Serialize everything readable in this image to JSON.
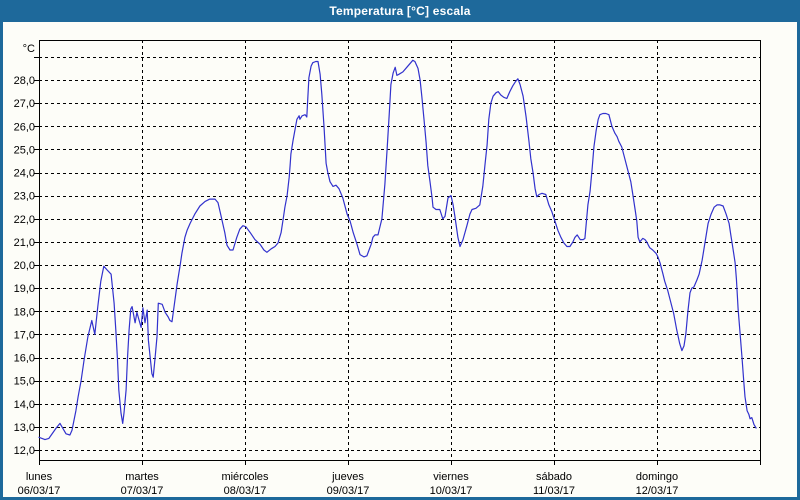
{
  "window": {
    "title": "Temperatura [°C] escala"
  },
  "theme": {
    "titlebar_bg": "#1e699b",
    "window_border": "#1e699b",
    "chart_bg": "#fdfdf8",
    "line_color": "#3232cd",
    "grid_color": "#000000",
    "text_color": "#000000"
  },
  "chart_data": {
    "type": "line",
    "title": "Temperatura [°C] escala",
    "y_unit_label": "°C",
    "grid": "dashed",
    "legend": "none",
    "y_axis": {
      "grid_min": 12,
      "grid_max": 29,
      "step": 1,
      "plot_min": 11.55,
      "plot_max": 29.75
    },
    "y_ticks": [
      {
        "value": 28,
        "label": "28,0"
      },
      {
        "value": 27,
        "label": "27,0"
      },
      {
        "value": 26,
        "label": "26,0"
      },
      {
        "value": 25,
        "label": "25,0"
      },
      {
        "value": 24,
        "label": "24,0"
      },
      {
        "value": 23,
        "label": "23,0"
      },
      {
        "value": 22,
        "label": "22,0"
      },
      {
        "value": 21,
        "label": "21,0"
      },
      {
        "value": 20,
        "label": "20,0"
      },
      {
        "value": 19,
        "label": "19,0"
      },
      {
        "value": 18,
        "label": "18,0"
      },
      {
        "value": 17,
        "label": "17,0"
      },
      {
        "value": 16,
        "label": "16,0"
      },
      {
        "value": 15,
        "label": "15,0"
      },
      {
        "value": 14,
        "label": "14,0"
      },
      {
        "value": 13,
        "label": "13,0"
      },
      {
        "value": 12,
        "label": "12,0"
      }
    ],
    "x_axis": {
      "unit": "hours",
      "hours_span": 168,
      "day_count": 7
    },
    "x_ticks": [
      {
        "name": "lunes",
        "date": "06/03/17"
      },
      {
        "name": "martes",
        "date": "07/03/17"
      },
      {
        "name": "miércoles",
        "date": "08/03/17"
      },
      {
        "name": "jueves",
        "date": "09/03/17"
      },
      {
        "name": "viernes",
        "date": "10/03/17"
      },
      {
        "name": "sábado",
        "date": "11/03/17"
      },
      {
        "name": "domingo",
        "date": "12/03/17"
      }
    ],
    "series": [
      {
        "name": "Temperatura [°C]",
        "color": "#3232cd",
        "x_unit": "hours",
        "points": [
          [
            0,
            12.55
          ],
          [
            1.4,
            12.45
          ],
          [
            2.3,
            12.5
          ],
          [
            4,
            12.95
          ],
          [
            4.9,
            13.15
          ],
          [
            6.3,
            12.7
          ],
          [
            7.2,
            12.65
          ],
          [
            7.7,
            12.85
          ],
          [
            8.6,
            13.7
          ],
          [
            9.1,
            14.3
          ],
          [
            9.8,
            15.0
          ],
          [
            10.5,
            15.9
          ],
          [
            11.4,
            16.9
          ],
          [
            12.3,
            17.6
          ],
          [
            13,
            17.0
          ],
          [
            13.7,
            18.2
          ],
          [
            14.4,
            19.3
          ],
          [
            15.1,
            19.95
          ],
          [
            15.8,
            19.8
          ],
          [
            16.8,
            19.6
          ],
          [
            17.5,
            18.35
          ],
          [
            17.9,
            17.2
          ],
          [
            18.3,
            15.9
          ],
          [
            18.6,
            14.6
          ],
          [
            19.1,
            13.6
          ],
          [
            19.5,
            13.15
          ],
          [
            19.8,
            13.6
          ],
          [
            20.3,
            14.6
          ],
          [
            20.6,
            15.9
          ],
          [
            21,
            17.2
          ],
          [
            21.4,
            18.1
          ],
          [
            21.7,
            18.2
          ],
          [
            22.4,
            17.5
          ],
          [
            22.8,
            17.95
          ],
          [
            23.8,
            17.3
          ],
          [
            24.2,
            18.15
          ],
          [
            24.7,
            17.5
          ],
          [
            25.2,
            18.05
          ],
          [
            25.5,
            16.75
          ],
          [
            25.9,
            16.0
          ],
          [
            26.3,
            15.3
          ],
          [
            26.6,
            15.15
          ],
          [
            27,
            15.9
          ],
          [
            27.5,
            16.9
          ],
          [
            27.8,
            18.35
          ],
          [
            28.7,
            18.3
          ],
          [
            29.4,
            17.95
          ],
          [
            30.1,
            17.75
          ],
          [
            30.5,
            17.6
          ],
          [
            31,
            17.55
          ],
          [
            32.2,
            19.2
          ],
          [
            32.9,
            20.0
          ],
          [
            33.3,
            20.5
          ],
          [
            34,
            21.2
          ],
          [
            34.5,
            21.5
          ],
          [
            35.2,
            21.8
          ],
          [
            36.3,
            22.2
          ],
          [
            37.5,
            22.55
          ],
          [
            38.7,
            22.75
          ],
          [
            39.8,
            22.85
          ],
          [
            41,
            22.85
          ],
          [
            41.7,
            22.7
          ],
          [
            42.2,
            22.3
          ],
          [
            43.3,
            21.4
          ],
          [
            43.8,
            20.85
          ],
          [
            44.5,
            20.65
          ],
          [
            45.2,
            20.65
          ],
          [
            46.1,
            21.2
          ],
          [
            46.8,
            21.55
          ],
          [
            47.5,
            21.7
          ],
          [
            48.2,
            21.65
          ],
          [
            49.2,
            21.4
          ],
          [
            50.3,
            21.1
          ],
          [
            51.5,
            20.9
          ],
          [
            52.4,
            20.65
          ],
          [
            53.1,
            20.55
          ],
          [
            54.1,
            20.7
          ],
          [
            55,
            20.8
          ],
          [
            55.7,
            20.95
          ],
          [
            56.4,
            21.4
          ],
          [
            56.9,
            22.0
          ],
          [
            57.3,
            22.5
          ],
          [
            57.8,
            23.0
          ],
          [
            58.3,
            23.8
          ],
          [
            58.5,
            24.3
          ],
          [
            58.7,
            24.8
          ],
          [
            59.2,
            25.4
          ],
          [
            59.7,
            25.9
          ],
          [
            60.1,
            26.3
          ],
          [
            60.6,
            26.45
          ],
          [
            60.8,
            26.3
          ],
          [
            61.3,
            26.45
          ],
          [
            62,
            26.5
          ],
          [
            62.4,
            26.4
          ],
          [
            62.9,
            28.1
          ],
          [
            63.4,
            28.6
          ],
          [
            63.8,
            28.75
          ],
          [
            64.5,
            28.8
          ],
          [
            65,
            28.8
          ],
          [
            65.5,
            28.25
          ],
          [
            65.9,
            27.4
          ],
          [
            66.4,
            26.0
          ],
          [
            66.9,
            24.4
          ],
          [
            67.3,
            24.0
          ],
          [
            67.8,
            23.6
          ],
          [
            68.5,
            23.4
          ],
          [
            69.2,
            23.45
          ],
          [
            69.9,
            23.3
          ],
          [
            70.8,
            22.9
          ],
          [
            71.8,
            22.2
          ],
          [
            72.5,
            21.9
          ],
          [
            73.2,
            21.4
          ],
          [
            74.1,
            20.9
          ],
          [
            74.8,
            20.45
          ],
          [
            75.7,
            20.35
          ],
          [
            76.4,
            20.4
          ],
          [
            77.4,
            20.9
          ],
          [
            77.8,
            21.2
          ],
          [
            78.3,
            21.3
          ],
          [
            79,
            21.3
          ],
          [
            79.9,
            22.0
          ],
          [
            80.6,
            23.5
          ],
          [
            81.1,
            25.0
          ],
          [
            81.6,
            26.5
          ],
          [
            82,
            27.8
          ],
          [
            82.5,
            28.3
          ],
          [
            83,
            28.55
          ],
          [
            83.4,
            28.2
          ],
          [
            83.9,
            28.25
          ],
          [
            84.8,
            28.35
          ],
          [
            85.7,
            28.55
          ],
          [
            86.4,
            28.7
          ],
          [
            87.1,
            28.85
          ],
          [
            87.6,
            28.8
          ],
          [
            88.3,
            28.5
          ],
          [
            88.8,
            28.0
          ],
          [
            89.2,
            27.3
          ],
          [
            89.7,
            26.3
          ],
          [
            90.2,
            25.3
          ],
          [
            90.6,
            24.3
          ],
          [
            91.1,
            23.6
          ],
          [
            91.6,
            22.9
          ],
          [
            91.8,
            22.5
          ],
          [
            92.5,
            22.4
          ],
          [
            93.4,
            22.4
          ],
          [
            94.1,
            22.0
          ],
          [
            94.6,
            22.1
          ],
          [
            95.3,
            22.9
          ],
          [
            96,
            23.0
          ],
          [
            96.5,
            22.6
          ],
          [
            96.9,
            22.1
          ],
          [
            97.6,
            21.2
          ],
          [
            98.1,
            20.8
          ],
          [
            98.8,
            21.1
          ],
          [
            99.7,
            21.7
          ],
          [
            100.4,
            22.2
          ],
          [
            100.9,
            22.4
          ],
          [
            101.8,
            22.45
          ],
          [
            102.7,
            22.6
          ],
          [
            103.4,
            23.4
          ],
          [
            103.9,
            24.3
          ],
          [
            104.4,
            25.2
          ],
          [
            104.8,
            26.3
          ],
          [
            105.3,
            27.0
          ],
          [
            105.8,
            27.3
          ],
          [
            106.5,
            27.45
          ],
          [
            107,
            27.5
          ],
          [
            107.6,
            27.35
          ],
          [
            108.3,
            27.25
          ],
          [
            109,
            27.2
          ],
          [
            109.7,
            27.5
          ],
          [
            110.4,
            27.75
          ],
          [
            111.1,
            27.95
          ],
          [
            111.6,
            28.05
          ],
          [
            112.1,
            27.8
          ],
          [
            112.8,
            27.3
          ],
          [
            113.5,
            26.4
          ],
          [
            114.2,
            25.3
          ],
          [
            114.6,
            24.6
          ],
          [
            115.1,
            24.0
          ],
          [
            115.6,
            23.3
          ],
          [
            116,
            22.95
          ],
          [
            116.5,
            23.05
          ],
          [
            117.2,
            23.1
          ],
          [
            118.1,
            23.05
          ],
          [
            118.8,
            22.6
          ],
          [
            119.5,
            22.3
          ],
          [
            120.2,
            21.9
          ],
          [
            120.9,
            21.5
          ],
          [
            121.6,
            21.2
          ],
          [
            122.3,
            20.95
          ],
          [
            123,
            20.8
          ],
          [
            123.7,
            20.8
          ],
          [
            124.4,
            21.0
          ],
          [
            124.9,
            21.2
          ],
          [
            125.4,
            21.3
          ],
          [
            126.1,
            21.1
          ],
          [
            126.8,
            21.1
          ],
          [
            127.2,
            21.15
          ],
          [
            127.9,
            22.6
          ],
          [
            128.4,
            23.2
          ],
          [
            128.9,
            24.2
          ],
          [
            129.3,
            25.1
          ],
          [
            129.8,
            25.8
          ],
          [
            130.3,
            26.3
          ],
          [
            130.7,
            26.5
          ],
          [
            131.4,
            26.55
          ],
          [
            132.1,
            26.55
          ],
          [
            132.8,
            26.5
          ],
          [
            133.5,
            26.0
          ],
          [
            134.2,
            25.7
          ],
          [
            134.7,
            25.55
          ],
          [
            135.1,
            25.35
          ],
          [
            135.8,
            25.1
          ],
          [
            136.5,
            24.6
          ],
          [
            137.2,
            24.1
          ],
          [
            137.9,
            23.6
          ],
          [
            138.4,
            23.0
          ],
          [
            138.9,
            22.4
          ],
          [
            139.3,
            21.9
          ],
          [
            139.6,
            21.2
          ],
          [
            140,
            21.0
          ],
          [
            140.7,
            21.15
          ],
          [
            141.2,
            21.1
          ],
          [
            141.6,
            21.0
          ],
          [
            142.3,
            20.75
          ],
          [
            143,
            20.65
          ],
          [
            143.8,
            20.5
          ],
          [
            144.2,
            20.35
          ],
          [
            144.7,
            20.1
          ],
          [
            145.4,
            19.6
          ],
          [
            145.8,
            19.3
          ],
          [
            146.5,
            18.9
          ],
          [
            147.2,
            18.4
          ],
          [
            147.9,
            17.9
          ],
          [
            148.6,
            17.2
          ],
          [
            149.3,
            16.6
          ],
          [
            149.8,
            16.3
          ],
          [
            150.3,
            16.5
          ],
          [
            150.7,
            17.0
          ],
          [
            151.2,
            18.0
          ],
          [
            151.7,
            18.8
          ],
          [
            152.1,
            19.0
          ],
          [
            152.6,
            19.05
          ],
          [
            153.3,
            19.35
          ],
          [
            153.8,
            19.6
          ],
          [
            154.5,
            20.2
          ],
          [
            155.2,
            21.0
          ],
          [
            155.9,
            21.8
          ],
          [
            156.6,
            22.2
          ],
          [
            157.3,
            22.5
          ],
          [
            158,
            22.6
          ],
          [
            158.7,
            22.6
          ],
          [
            159.4,
            22.55
          ],
          [
            160.1,
            22.2
          ],
          [
            160.8,
            21.8
          ],
          [
            161.2,
            21.3
          ],
          [
            161.7,
            20.7
          ],
          [
            162.2,
            20.1
          ],
          [
            162.5,
            19.4
          ],
          [
            162.9,
            18.1
          ],
          [
            163.3,
            17.2
          ],
          [
            163.8,
            16.0
          ],
          [
            164.2,
            15.0
          ],
          [
            164.5,
            14.3
          ],
          [
            165,
            13.7
          ],
          [
            165.4,
            13.55
          ],
          [
            165.7,
            13.35
          ],
          [
            166.1,
            13.4
          ],
          [
            166.6,
            13.1
          ],
          [
            167.1,
            12.95
          ]
        ]
      }
    ]
  }
}
